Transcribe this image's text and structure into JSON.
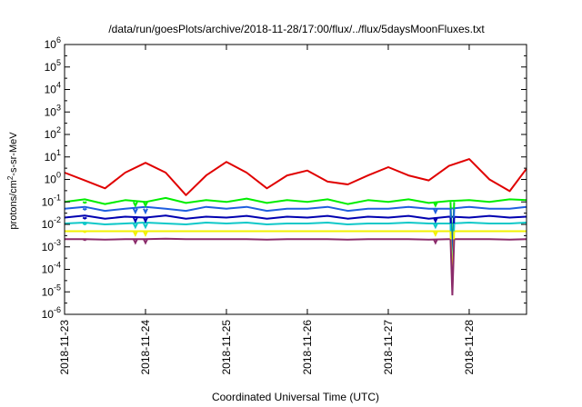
{
  "chart_data": {
    "type": "line",
    "title": "/data/run/goesPlots/archive/2018-11-28/17:00/flux/../flux/5daysMoonFluxes.txt",
    "xlabel": "Coordinated Universal Time (UTC)",
    "ylabel": {
      "base": "protons/cm",
      "sup": "2",
      "rest": "-s-sr-MeV"
    },
    "y_scale": "log",
    "ylim": [
      1e-06,
      1000000.0
    ],
    "y_ticks": [
      {
        "value": 1e-06,
        "base": "10",
        "exp": "-6"
      },
      {
        "value": 1e-05,
        "base": "10",
        "exp": "-5"
      },
      {
        "value": 0.0001,
        "base": "10",
        "exp": "-4"
      },
      {
        "value": 0.001,
        "base": "10",
        "exp": "-3"
      },
      {
        "value": 0.01,
        "base": "10",
        "exp": "-2"
      },
      {
        "value": 0.1,
        "base": "10",
        "exp": "-1"
      },
      {
        "value": 1,
        "base": "10",
        "exp": "0"
      },
      {
        "value": 10.0,
        "base": "10",
        "exp": "1"
      },
      {
        "value": 100.0,
        "base": "10",
        "exp": "2"
      },
      {
        "value": 1000.0,
        "base": "10",
        "exp": "3"
      },
      {
        "value": 10000.0,
        "base": "10",
        "exp": "4"
      },
      {
        "value": 100000.0,
        "base": "10",
        "exp": "5"
      },
      {
        "value": 1000000.0,
        "base": "10",
        "exp": "6"
      }
    ],
    "xlim": [
      "2018-11-23",
      "2018-11-28 17:00"
    ],
    "x_ticks": [
      "2018-11-23",
      "2018-11-24",
      "2018-11-25",
      "2018-11-26",
      "2018-11-27",
      "2018-11-28"
    ],
    "grid": false,
    "legend": "none",
    "series": [
      {
        "color": "#e00000",
        "x": [
          "2018-11-23 00:00",
          "2018-11-23 06:00",
          "2018-11-23 12:00",
          "2018-11-23 18:00",
          "2018-11-24 00:00",
          "2018-11-24 06:00",
          "2018-11-24 12:00",
          "2018-11-24 18:00",
          "2018-11-25 00:00",
          "2018-11-25 06:00",
          "2018-11-25 12:00",
          "2018-11-25 18:00",
          "2018-11-26 00:00",
          "2018-11-26 06:00",
          "2018-11-26 12:00",
          "2018-11-26 18:00",
          "2018-11-27 00:00",
          "2018-11-27 06:00",
          "2018-11-27 12:00",
          "2018-11-27 18:00",
          "2018-11-28 00:00",
          "2018-11-28 06:00",
          "2018-11-28 12:00",
          "2018-11-28 17:00"
        ],
        "y": [
          2,
          0.9,
          0.4,
          2,
          5.5,
          2,
          0.2,
          1.5,
          6,
          2,
          0.4,
          1.5,
          2.5,
          0.8,
          0.6,
          1.5,
          3.5,
          1.5,
          0.9,
          4,
          8,
          1,
          0.3,
          3
        ]
      },
      {
        "color": "#00ee00",
        "x": [
          "2018-11-23 00:00",
          "2018-11-23 06:00",
          "2018-11-23 12:00",
          "2018-11-23 18:00",
          "2018-11-24 00:00",
          "2018-11-24 06:00",
          "2018-11-24 12:00",
          "2018-11-24 18:00",
          "2018-11-25 00:00",
          "2018-11-25 06:00",
          "2018-11-25 12:00",
          "2018-11-25 18:00",
          "2018-11-26 00:00",
          "2018-11-26 06:00",
          "2018-11-26 12:00",
          "2018-11-26 18:00",
          "2018-11-27 00:00",
          "2018-11-27 06:00",
          "2018-11-27 12:00",
          "2018-11-27 18:00",
          "2018-11-28 00:00",
          "2018-11-28 06:00",
          "2018-11-28 12:00",
          "2018-11-28 17:00"
        ],
        "y": [
          0.1,
          0.13,
          0.08,
          0.12,
          0.1,
          0.15,
          0.09,
          0.12,
          0.1,
          0.14,
          0.09,
          0.12,
          0.1,
          0.13,
          0.08,
          0.12,
          0.1,
          0.13,
          0.09,
          0.11,
          0.12,
          0.1,
          0.13,
          0.12
        ]
      },
      {
        "color": "#1f5fdf",
        "x": [
          "2018-11-23 00:00",
          "2018-11-23 06:00",
          "2018-11-23 12:00",
          "2018-11-23 18:00",
          "2018-11-24 00:00",
          "2018-11-24 06:00",
          "2018-11-24 12:00",
          "2018-11-24 18:00",
          "2018-11-25 00:00",
          "2018-11-25 06:00",
          "2018-11-25 12:00",
          "2018-11-25 18:00",
          "2018-11-26 00:00",
          "2018-11-26 06:00",
          "2018-11-26 12:00",
          "2018-11-26 18:00",
          "2018-11-27 00:00",
          "2018-11-27 06:00",
          "2018-11-27 12:00",
          "2018-11-27 18:00",
          "2018-11-28 00:00",
          "2018-11-28 06:00",
          "2018-11-28 12:00",
          "2018-11-28 17:00"
        ],
        "y": [
          0.05,
          0.06,
          0.04,
          0.05,
          0.06,
          0.05,
          0.04,
          0.06,
          0.05,
          0.06,
          0.04,
          0.05,
          0.05,
          0.06,
          0.04,
          0.05,
          0.05,
          0.06,
          0.05,
          0.05,
          0.06,
          0.05,
          0.05,
          0.06
        ]
      },
      {
        "color": "#0000b0",
        "x": [
          "2018-11-23 00:00",
          "2018-11-23 06:00",
          "2018-11-23 12:00",
          "2018-11-23 18:00",
          "2018-11-24 00:00",
          "2018-11-24 06:00",
          "2018-11-24 12:00",
          "2018-11-24 18:00",
          "2018-11-25 00:00",
          "2018-11-25 06:00",
          "2018-11-25 12:00",
          "2018-11-25 18:00",
          "2018-11-26 00:00",
          "2018-11-26 06:00",
          "2018-11-26 12:00",
          "2018-11-26 18:00",
          "2018-11-27 00:00",
          "2018-11-27 06:00",
          "2018-11-27 12:00",
          "2018-11-27 18:00",
          "2018-11-28 00:00",
          "2018-11-28 06:00",
          "2018-11-28 12:00",
          "2018-11-28 17:00"
        ],
        "y": [
          0.02,
          0.025,
          0.018,
          0.022,
          0.02,
          0.025,
          0.018,
          0.022,
          0.02,
          0.024,
          0.018,
          0.022,
          0.02,
          0.024,
          0.018,
          0.022,
          0.02,
          0.024,
          0.018,
          0.022,
          0.02,
          0.024,
          0.02,
          0.022
        ]
      },
      {
        "color": "#10c8c8",
        "x": [
          "2018-11-23 00:00",
          "2018-11-23 06:00",
          "2018-11-23 12:00",
          "2018-11-23 18:00",
          "2018-11-24 00:00",
          "2018-11-24 06:00",
          "2018-11-24 12:00",
          "2018-11-24 18:00",
          "2018-11-25 00:00",
          "2018-11-25 06:00",
          "2018-11-25 12:00",
          "2018-11-25 18:00",
          "2018-11-26 00:00",
          "2018-11-26 06:00",
          "2018-11-26 12:00",
          "2018-11-26 18:00",
          "2018-11-27 00:00",
          "2018-11-27 06:00",
          "2018-11-27 12:00",
          "2018-11-27 18:00",
          "2018-11-28 00:00",
          "2018-11-28 06:00",
          "2018-11-28 12:00",
          "2018-11-28 17:00"
        ],
        "y": [
          0.011,
          0.012,
          0.01,
          0.011,
          0.012,
          0.011,
          0.01,
          0.012,
          0.011,
          0.012,
          0.01,
          0.011,
          0.011,
          0.012,
          0.01,
          0.011,
          0.011,
          0.012,
          0.011,
          0.011,
          0.012,
          0.011,
          0.011,
          0.012
        ]
      },
      {
        "color": "#f2f200",
        "x": [
          "2018-11-23 00:00",
          "2018-11-23 06:00",
          "2018-11-23 12:00",
          "2018-11-23 18:00",
          "2018-11-24 00:00",
          "2018-11-24 06:00",
          "2018-11-24 12:00",
          "2018-11-24 18:00",
          "2018-11-25 00:00",
          "2018-11-25 06:00",
          "2018-11-25 12:00",
          "2018-11-25 18:00",
          "2018-11-26 00:00",
          "2018-11-26 06:00",
          "2018-11-26 12:00",
          "2018-11-26 18:00",
          "2018-11-27 00:00",
          "2018-11-27 06:00",
          "2018-11-27 12:00",
          "2018-11-27 18:00",
          "2018-11-28 00:00",
          "2018-11-28 06:00",
          "2018-11-28 12:00",
          "2018-11-28 17:00"
        ],
        "y": [
          0.005,
          0.005,
          0.005,
          0.005,
          0.005,
          0.005,
          0.005,
          0.005,
          0.005,
          0.005,
          0.005,
          0.005,
          0.005,
          0.005,
          0.005,
          0.005,
          0.005,
          0.005,
          0.005,
          0.005,
          0.005,
          0.005,
          0.005,
          0.005
        ]
      },
      {
        "color": "#8b2b6b",
        "x": [
          "2018-11-23 00:00",
          "2018-11-23 06:00",
          "2018-11-23 12:00",
          "2018-11-23 18:00",
          "2018-11-24 00:00",
          "2018-11-24 06:00",
          "2018-11-24 12:00",
          "2018-11-24 18:00",
          "2018-11-25 00:00",
          "2018-11-25 06:00",
          "2018-11-25 12:00",
          "2018-11-25 18:00",
          "2018-11-26 00:00",
          "2018-11-26 06:00",
          "2018-11-26 12:00",
          "2018-11-26 18:00",
          "2018-11-27 00:00",
          "2018-11-27 06:00",
          "2018-11-27 12:00",
          "2018-11-27 18:00",
          "2018-11-28 00:00",
          "2018-11-28 06:00",
          "2018-11-28 12:00",
          "2018-11-28 17:00"
        ],
        "y": [
          0.0022,
          0.0022,
          0.0021,
          0.0022,
          0.0022,
          0.0023,
          0.0022,
          0.0022,
          0.0022,
          0.0022,
          0.0021,
          0.0022,
          0.0022,
          0.0022,
          0.0021,
          0.0022,
          0.0022,
          0.0022,
          0.0021,
          0.0022,
          0.0022,
          0.0022,
          0.0021,
          0.0022
        ]
      }
    ],
    "dips": [
      {
        "x": "2018-11-23 06:00",
        "y": 0.002
      },
      {
        "x": "2018-11-23 21:00",
        "y": 0.0015
      },
      {
        "x": "2018-11-24 00:00",
        "y": 0.0015
      },
      {
        "x": "2018-11-27 14:00",
        "y": 0.0015
      },
      {
        "x": "2018-11-27 19:00",
        "y": 7e-06
      }
    ]
  }
}
